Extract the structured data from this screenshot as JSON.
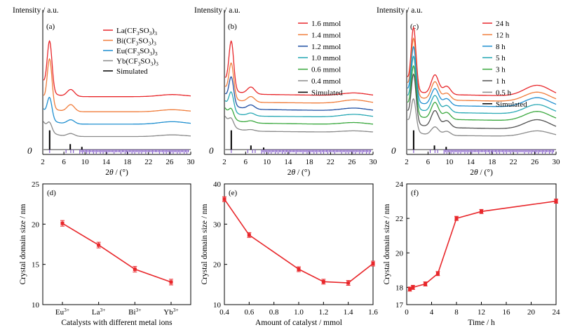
{
  "colors": {
    "red": "#e8262a",
    "orange": "#f07c3a",
    "blue": "#1f8fd0",
    "purple": "#7f6fae",
    "gray": "#8a8a8a",
    "black": "#000000",
    "darkblue": "#1f4fa3",
    "teal": "#27a8b4",
    "green": "#3aa83e",
    "darkgray": "#505050",
    "ticks": "#7040c0"
  },
  "chart_data": [
    {
      "panel": "a",
      "type": "line",
      "ylabel": "Intensity / a.u.",
      "xlabel_prefix": "2",
      "xlabel_theta": "θ",
      "xlabel_suffix": " / (°)",
      "zero_label": "0",
      "xlim": [
        2,
        30
      ],
      "x_ticks": [
        2,
        6,
        10,
        14,
        18,
        22,
        26,
        30
      ],
      "x_tick_labels": [
        "2",
        "6",
        "10",
        "14",
        "18",
        "22",
        "26",
        "30"
      ],
      "grid": false,
      "legend_position": "top-right",
      "series": [
        {
          "legend": {
            "base": "La(CF",
            "sub1": "3",
            "mid": "SO",
            "sub2": "3",
            "close": ")",
            "sub3": "3"
          },
          "color": "red",
          "offset": 0.42,
          "peaks": [
            [
              3.3,
              0.36
            ],
            [
              7.3,
              0.05
            ],
            [
              26.5,
              0.015
            ]
          ],
          "tail": 0.0
        },
        {
          "legend": {
            "base": "Bi(CF",
            "sub1": "3",
            "mid": "SO",
            "sub2": "3",
            "close": ")",
            "sub3": "3"
          },
          "color": "orange",
          "offset": 0.31,
          "peaks": [
            [
              3.3,
              0.34
            ],
            [
              7.3,
              0.05
            ],
            [
              26.5,
              0.015
            ]
          ],
          "tail": 0.0
        },
        {
          "legend": {
            "base": "Eu(CF",
            "sub1": "3",
            "mid": "SO",
            "sub2": "3",
            "close": ")",
            "sub3": "3"
          },
          "color": "blue",
          "offset": 0.22,
          "peaks": [
            [
              3.3,
              0.15
            ],
            [
              7.3,
              0.03
            ],
            [
              26.5,
              0.018
            ]
          ],
          "tail": 0.0
        },
        {
          "legend": {
            "base": "Yb(CF",
            "sub1": "3",
            "mid": "SO",
            "sub2": "3",
            "close": ")",
            "sub3": "3"
          },
          "color": "gray",
          "offset": 0.13,
          "peaks": [
            [
              3.3,
              0.06
            ],
            [
              7.3,
              0.02
            ],
            [
              26.5,
              0.012
            ]
          ],
          "tail": 0.0
        }
      ],
      "simulated": {
        "legend": "Simulated",
        "color": "black",
        "sticks": [
          [
            3.3,
            0.14
          ],
          [
            7.2,
            0.04
          ],
          [
            9.4,
            0.02
          ]
        ]
      }
    },
    {
      "panel": "b",
      "type": "line",
      "ylabel": "Intensity / a.u.",
      "xlabel_prefix": "2",
      "xlabel_theta": "θ",
      "xlabel_suffix": " / (°)",
      "zero_label": "0",
      "xlim": [
        2,
        30
      ],
      "x_ticks": [
        2,
        6,
        10,
        14,
        18,
        22,
        26,
        30
      ],
      "x_tick_labels": [
        "2",
        "6",
        "10",
        "14",
        "18",
        "22",
        "26",
        "30"
      ],
      "grid": false,
      "legend_position": "top-right",
      "series": [
        {
          "legend": "1.6 mmol",
          "color": "red",
          "offset": 0.44,
          "peaks": [
            [
              3.3,
              0.34
            ],
            [
              7.0,
              0.05
            ],
            [
              26.5,
              0.02
            ]
          ],
          "tail": -0.015
        },
        {
          "legend": "1.4 mmol",
          "color": "orange",
          "offset": 0.38,
          "peaks": [
            [
              3.3,
              0.24
            ],
            [
              7.0,
              0.04
            ],
            [
              26.5,
              0.025
            ]
          ],
          "tail": -0.01
        },
        {
          "legend": "1.2 mmol",
          "color": "darkblue",
          "offset": 0.33,
          "peaks": [
            [
              3.3,
              0.19
            ],
            [
              7.0,
              0.03
            ],
            [
              26.5,
              0.02
            ]
          ],
          "tail": -0.015
        },
        {
          "legend": "1.0 mmol",
          "color": "teal",
          "offset": 0.28,
          "peaks": [
            [
              3.3,
              0.13
            ],
            [
              7.0,
              0.02
            ],
            [
              26.5,
              0.02
            ]
          ],
          "tail": -0.01
        },
        {
          "legend": "0.6 mmol",
          "color": "green",
          "offset": 0.23,
          "peaks": [
            [
              3.3,
              0.06
            ],
            [
              7.0,
              0.015
            ],
            [
              26.5,
              0.015
            ]
          ],
          "tail": -0.015
        },
        {
          "legend": "0.4 mmol",
          "color": "gray",
          "offset": 0.17,
          "peaks": [
            [
              3.3,
              0.05
            ],
            [
              7.0,
              0.01
            ],
            [
              26.5,
              0.01
            ]
          ],
          "tail": -0.01
        }
      ],
      "simulated": {
        "legend": "Simulated",
        "color": "black",
        "sticks": [
          [
            3.3,
            0.14
          ],
          [
            7.0,
            0.03
          ],
          [
            9.4,
            0.015
          ]
        ]
      }
    },
    {
      "panel": "c",
      "type": "line",
      "ylabel": "Intensity / a.u.",
      "xlabel_prefix": "2",
      "xlabel_theta": "θ",
      "xlabel_suffix": " / (°)",
      "zero_label": "0",
      "xlim": [
        2,
        30
      ],
      "x_ticks": [
        2,
        6,
        10,
        14,
        18,
        22,
        26,
        30
      ],
      "x_tick_labels": [
        "2",
        "6",
        "10",
        "14",
        "18",
        "22",
        "26",
        "30"
      ],
      "grid": false,
      "legend_position": "top-right",
      "series": [
        {
          "legend": "24 h",
          "color": "red",
          "offset": 0.44,
          "peaks": [
            [
              3.3,
              0.44
            ],
            [
              7.3,
              0.14
            ],
            [
              9.5,
              0.06
            ],
            [
              26.5,
              0.08
            ]
          ],
          "tail": -0.02
        },
        {
          "legend": "12 h",
          "color": "orange",
          "offset": 0.4,
          "peaks": [
            [
              3.3,
              0.4
            ],
            [
              7.3,
              0.13
            ],
            [
              9.5,
              0.05
            ],
            [
              26.5,
              0.07
            ]
          ],
          "tail": -0.02
        },
        {
          "legend": "8 h",
          "color": "blue",
          "offset": 0.36,
          "peaks": [
            [
              3.3,
              0.38
            ],
            [
              7.3,
              0.12
            ],
            [
              9.5,
              0.05
            ],
            [
              26.5,
              0.07
            ]
          ],
          "tail": -0.02
        },
        {
          "legend": "5 h",
          "color": "teal",
          "offset": 0.31,
          "peaks": [
            [
              3.3,
              0.36
            ],
            [
              7.3,
              0.12
            ],
            [
              9.5,
              0.05
            ],
            [
              26.5,
              0.07
            ]
          ],
          "tail": -0.02
        },
        {
          "legend": "3 h",
          "color": "green",
          "offset": 0.26,
          "peaks": [
            [
              3.3,
              0.34
            ],
            [
              7.3,
              0.12
            ],
            [
              9.5,
              0.05
            ],
            [
              26.5,
              0.07
            ]
          ],
          "tail": -0.02
        },
        {
          "legend": "1 h",
          "color": "darkgray",
          "offset": 0.2,
          "peaks": [
            [
              3.3,
              0.34
            ],
            [
              7.3,
              0.12
            ],
            [
              9.5,
              0.05
            ],
            [
              26.5,
              0.07
            ]
          ],
          "tail": -0.02
        },
        {
          "legend": "0.5 h",
          "color": "gray",
          "offset": 0.14,
          "peaks": [
            [
              3.3,
              0.22
            ],
            [
              7.3,
              0.06
            ],
            [
              9.5,
              0.03
            ],
            [
              26.5,
              0.04
            ]
          ],
          "tail": -0.01
        }
      ],
      "simulated": {
        "legend": "Simulated",
        "color": "black",
        "sticks": [
          [
            3.3,
            0.14
          ],
          [
            7.2,
            0.03
          ],
          [
            9.4,
            0.02
          ]
        ]
      }
    },
    {
      "panel": "d",
      "type": "line",
      "ylabel": "Crystal domain size / nm",
      "xlabel": "Catalysts with different metal ions",
      "categories": [
        {
          "base": "Eu",
          "sup": "3+"
        },
        {
          "base": "La",
          "sup": "3+"
        },
        {
          "base": "Bi",
          "sup": "3+"
        },
        {
          "base": "Yb",
          "sup": "3+"
        }
      ],
      "values": [
        20.1,
        17.4,
        14.4,
        12.8
      ],
      "errors": [
        0.35,
        0.35,
        0.35,
        0.35
      ],
      "ylim": [
        10,
        25
      ],
      "y_ticks": [
        10,
        15,
        20,
        25
      ],
      "color": "red",
      "grid": false
    },
    {
      "panel": "e",
      "type": "line",
      "ylabel": "Crystal domain size / nm",
      "xlabel": "Amount of catalyst / mmol",
      "x": [
        0.4,
        0.6,
        1.0,
        1.2,
        1.4,
        1.6
      ],
      "values": [
        36.2,
        27.3,
        18.8,
        15.7,
        15.4,
        20.2
      ],
      "errors": [
        0.6,
        0.6,
        0.6,
        0.6,
        0.6,
        0.6
      ],
      "xlim": [
        0.4,
        1.6
      ],
      "x_ticks": [
        0.4,
        0.6,
        0.8,
        1.0,
        1.2,
        1.4,
        1.6
      ],
      "x_tick_labels": [
        "0.4",
        "0.6",
        "0.8",
        "1.0",
        "1.2",
        "1.4",
        "1.6"
      ],
      "ylim": [
        10,
        40
      ],
      "y_ticks": [
        10,
        20,
        30,
        40
      ],
      "color": "red",
      "grid": false
    },
    {
      "panel": "f",
      "type": "line",
      "ylabel": "Crystal domain size / nm",
      "xlabel": "Time / h",
      "x": [
        0.5,
        1,
        3,
        5,
        8,
        12,
        24
      ],
      "values": [
        17.9,
        18.0,
        18.2,
        18.8,
        22.0,
        22.4,
        23.0
      ],
      "errors": [
        0.12,
        0.12,
        0.12,
        0.12,
        0.12,
        0.12,
        0.12
      ],
      "xlim": [
        0,
        24
      ],
      "x_ticks": [
        0,
        4,
        8,
        12,
        16,
        20,
        24
      ],
      "x_tick_labels": [
        "0",
        "4",
        "8",
        "12",
        "16",
        "20",
        "24"
      ],
      "ylim": [
        17,
        24
      ],
      "y_ticks": [
        17,
        18,
        20,
        22,
        24
      ],
      "color": "red",
      "grid": false
    }
  ]
}
